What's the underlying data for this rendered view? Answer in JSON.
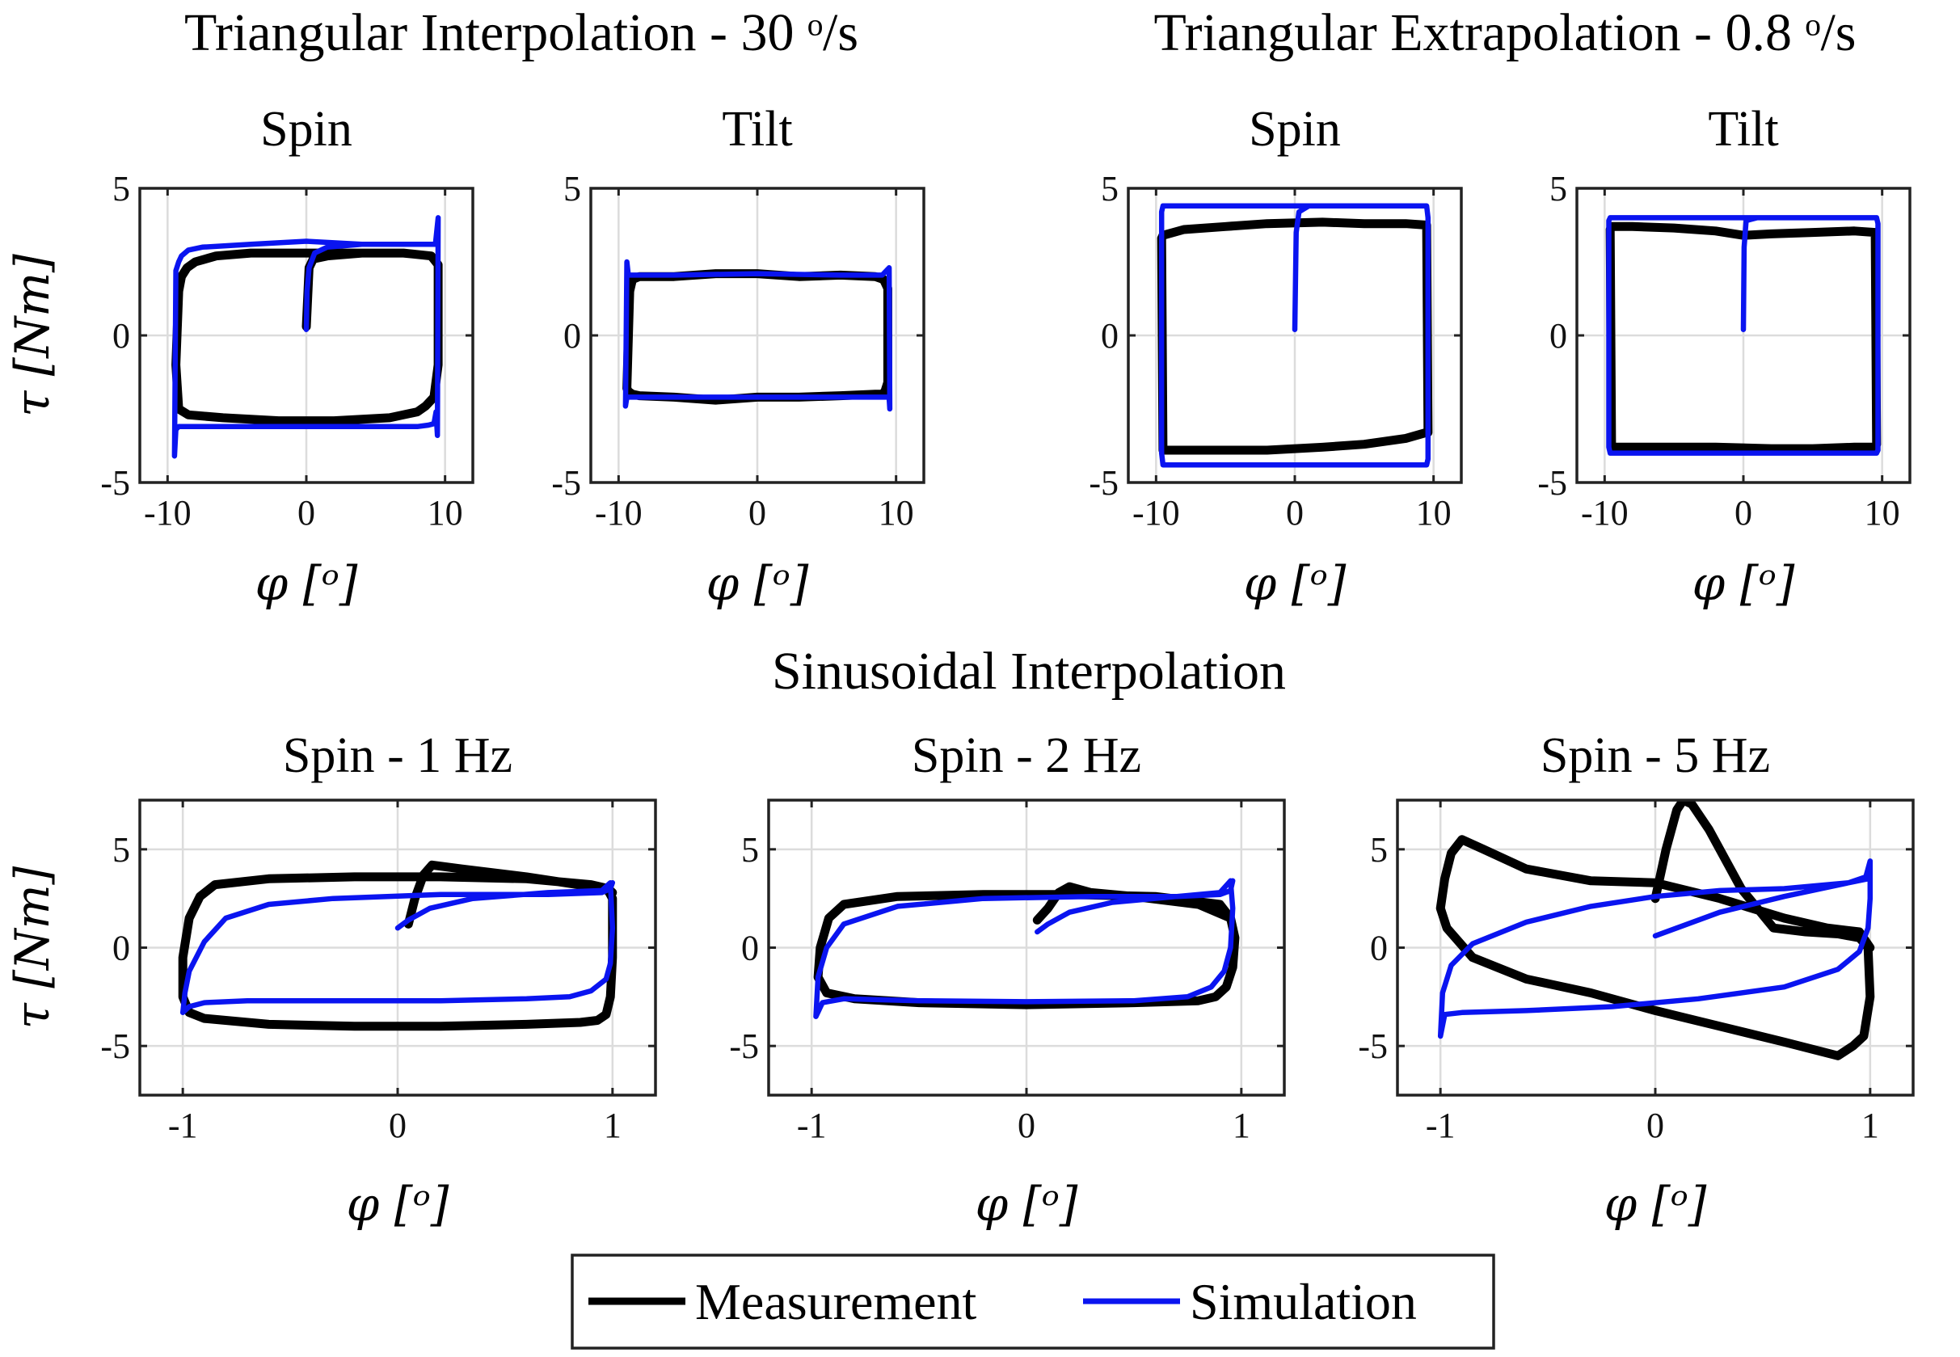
{
  "section_titles": {
    "tri_interp": "Triangular Interpolation - 30 ᵒ/s",
    "tri_extrap": "Triangular Extrapolation - 0.8 ᵒ/s",
    "sin_interp": "Sinusoidal Interpolation"
  },
  "legend": {
    "measurement": "Measurement",
    "simulation": "Simulation"
  },
  "colors": {
    "measurement": "#000000",
    "simulation": "#0a14f0"
  },
  "chart_data": [
    {
      "type": "line",
      "title": "Spin",
      "xlabel": "φ [ᵒ]",
      "ylabel": "τ [Nm]",
      "xlim": [
        -12,
        12
      ],
      "ylim": [
        -5,
        5
      ],
      "xticks": [
        -10,
        0,
        10
      ],
      "yticks": [
        -5,
        0,
        5
      ],
      "xtick_labels": [
        "-10",
        "0",
        "10"
      ],
      "ytick_labels": [
        "-5",
        "0",
        "5"
      ],
      "grid": true,
      "series": [
        {
          "name": "Measurement",
          "x": [
            0.0,
            0.2,
            0.5,
            1.5,
            4,
            7,
            9,
            9.5,
            9.5,
            9.2,
            8.6,
            8,
            6,
            2,
            -2,
            -6,
            -8.5,
            -9.2,
            -9.4,
            -9.2,
            -9.0,
            -8.6,
            -8.0,
            -6.5,
            -4,
            0,
            4,
            7,
            9,
            9.5
          ],
          "y": [
            0.3,
            2.3,
            2.6,
            2.7,
            2.8,
            2.8,
            2.7,
            2.4,
            -1.0,
            -2.1,
            -2.4,
            -2.6,
            -2.8,
            -2.9,
            -2.9,
            -2.8,
            -2.7,
            -2.5,
            -1.0,
            1.5,
            2.0,
            2.3,
            2.5,
            2.7,
            2.8,
            2.8,
            2.8,
            2.8,
            2.7,
            2.4
          ]
        },
        {
          "name": "Simulation",
          "x": [
            0.0,
            0.05,
            0.2,
            0.6,
            1.5,
            4,
            8,
            9.3,
            9.5,
            9.45,
            9.35,
            9.2,
            8.8,
            8,
            4,
            -4,
            -8,
            -9.2,
            -9.4,
            -9.5,
            -9.4,
            -9.2,
            -9.0,
            -8.5,
            -7.5,
            -4,
            0,
            4,
            8,
            9.3,
            9.5
          ],
          "y": [
            0.2,
            1.5,
            2.3,
            2.8,
            3.0,
            3.1,
            3.1,
            3.1,
            4.0,
            -3.4,
            -2.6,
            -3.0,
            -3.05,
            -3.1,
            -3.1,
            -3.1,
            -3.1,
            -3.1,
            -3.2,
            -4.1,
            2.2,
            2.5,
            2.7,
            2.9,
            3.0,
            3.1,
            3.2,
            3.1,
            3.1,
            3.1,
            4.0
          ]
        }
      ]
    },
    {
      "type": "line",
      "title": "Tilt",
      "xlabel": "φ [ᵒ]",
      "ylabel": "",
      "xlim": [
        -12,
        12
      ],
      "ylim": [
        -5,
        5
      ],
      "xticks": [
        -10,
        0,
        10
      ],
      "yticks": [
        -5,
        0,
        5
      ],
      "xtick_labels": [
        "-10",
        "0",
        "10"
      ],
      "ytick_labels": [
        "-5",
        "0",
        "5"
      ],
      "grid": true,
      "series": [
        {
          "name": "Measurement",
          "x": [
            -9.4,
            -9.2,
            -9.0,
            -8.5,
            -6,
            -3,
            0,
            3,
            6,
            8.5,
            9.1,
            9.4,
            9.4,
            9.2,
            9.0,
            8.5,
            6,
            3,
            0,
            -3,
            -6,
            -8.5,
            -9.0,
            -9.3,
            -9.4
          ],
          "y": [
            -1.8,
            1.5,
            1.9,
            2.0,
            2.0,
            2.1,
            2.1,
            2.0,
            2.05,
            2.0,
            1.9,
            1.6,
            -1.6,
            -1.9,
            -2.0,
            -2.0,
            -2.05,
            -2.1,
            -2.1,
            -2.2,
            -2.1,
            -2.05,
            -2.0,
            -1.9,
            -1.8
          ]
        },
        {
          "name": "Simulation",
          "x": [
            -9.5,
            -9.4,
            -9.3,
            -9.0,
            -6,
            0,
            6,
            9.0,
            9.5,
            9.55,
            9.5,
            9.4,
            9.0,
            6,
            0,
            -6,
            -9.0,
            -9.4,
            -9.5
          ],
          "y": [
            -2.4,
            2.5,
            2.05,
            2.05,
            2.05,
            2.1,
            2.05,
            2.05,
            2.3,
            -2.5,
            -2.15,
            -2.1,
            -2.1,
            -2.1,
            -2.1,
            -2.1,
            -2.1,
            -2.1,
            -2.4
          ]
        }
      ]
    },
    {
      "type": "line",
      "title": "Spin",
      "xlabel": "φ [ᵒ]",
      "ylabel": "τ [Nm]",
      "xlim": [
        -12,
        12
      ],
      "ylim": [
        -5,
        5
      ],
      "xticks": [
        -10,
        0,
        10
      ],
      "yticks": [
        -5,
        0,
        5
      ],
      "xtick_labels": [
        "-10",
        "0",
        "10"
      ],
      "ytick_labels": [
        "-5",
        "0",
        "5"
      ],
      "grid": true,
      "series": [
        {
          "name": "Measurement",
          "x": [
            -9.6,
            -9.5,
            -8,
            -5,
            -2,
            2,
            5,
            8,
            9.5,
            9.6,
            9.5,
            8,
            5,
            2,
            -2,
            -5,
            -8,
            -9.5,
            -9.6
          ],
          "y": [
            3.3,
            3.4,
            3.6,
            3.7,
            3.8,
            3.85,
            3.8,
            3.8,
            3.75,
            -3.3,
            -3.3,
            -3.5,
            -3.7,
            -3.8,
            -3.9,
            -3.9,
            -3.9,
            -3.9,
            3.3
          ]
        },
        {
          "name": "Simulation",
          "x": [
            0.0,
            0.1,
            0.3,
            1,
            5,
            9.5,
            9.6,
            9.6,
            9.5,
            5,
            0,
            -5,
            -9.5,
            -9.6,
            -9.6,
            -9.5,
            -5,
            0,
            5,
            9.5
          ],
          "y": [
            0.2,
            3.5,
            4.2,
            4.4,
            4.4,
            4.4,
            4.0,
            -4.2,
            -4.4,
            -4.4,
            -4.4,
            -4.4,
            -4.4,
            -4.0,
            4.2,
            4.4,
            4.4,
            4.4,
            4.4,
            4.4
          ]
        }
      ]
    },
    {
      "type": "line",
      "title": "Tilt",
      "xlabel": "φ [ᵒ]",
      "ylabel": "",
      "xlim": [
        -12,
        12
      ],
      "ylim": [
        -5,
        5
      ],
      "xticks": [
        -10,
        0,
        10
      ],
      "yticks": [
        -5,
        0,
        5
      ],
      "xtick_labels": [
        "-10",
        "0",
        "10"
      ],
      "ytick_labels": [
        "-5",
        "0",
        "5"
      ],
      "grid": true,
      "series": [
        {
          "name": "Measurement",
          "x": [
            -9.6,
            -9.5,
            -8,
            -5,
            -2,
            0,
            2,
            5,
            8,
            9.5,
            9.6,
            9.5,
            8,
            5,
            2,
            -2,
            -5,
            -8,
            -9.5,
            -9.6
          ],
          "y": [
            3.6,
            3.7,
            3.7,
            3.65,
            3.55,
            3.4,
            3.45,
            3.5,
            3.55,
            3.5,
            -3.7,
            -3.8,
            -3.8,
            -3.85,
            -3.85,
            -3.8,
            -3.8,
            -3.8,
            -3.8,
            3.6
          ]
        },
        {
          "name": "Simulation",
          "x": [
            0.0,
            0.05,
            0.2,
            1,
            5,
            9.6,
            9.7,
            9.7,
            9.6,
            5,
            0,
            -5,
            -9.6,
            -9.7,
            -9.7,
            -9.6,
            -5,
            0,
            5,
            9.6
          ],
          "y": [
            0.2,
            3.0,
            3.9,
            4.0,
            4.0,
            4.0,
            3.8,
            -3.9,
            -4.0,
            -4.0,
            -4.0,
            -4.0,
            -4.0,
            -3.8,
            3.9,
            4.0,
            4.0,
            4.0,
            4.0,
            4.0
          ]
        }
      ]
    },
    {
      "type": "line",
      "title": "Spin - 1 Hz",
      "xlabel": "φ [ᵒ]",
      "ylabel": "τ [Nm]",
      "xlim": [
        -1.2,
        1.2
      ],
      "ylim": [
        -7.5,
        7.5
      ],
      "xticks": [
        -1,
        0,
        1
      ],
      "yticks": [
        -5,
        0,
        5
      ],
      "xtick_labels": [
        "-1",
        "0",
        "1"
      ],
      "ytick_labels": [
        "-5",
        "0",
        "5"
      ],
      "grid": true,
      "series": [
        {
          "name": "Measurement",
          "x": [
            0.05,
            0.08,
            0.12,
            0.16,
            0.3,
            0.6,
            0.9,
            0.98,
            1.0,
            1.0,
            0.99,
            0.97,
            0.93,
            0.85,
            0.6,
            0.2,
            -0.2,
            -0.6,
            -0.9,
            -0.97,
            -1.0,
            -1.0,
            -0.97,
            -0.92,
            -0.85,
            -0.6,
            -0.2,
            0.2,
            0.6,
            0.9,
            0.98,
            1.0
          ],
          "y": [
            1.2,
            2.5,
            3.7,
            4.2,
            4.0,
            3.6,
            3.1,
            2.9,
            2.5,
            -0.5,
            -2.5,
            -3.4,
            -3.7,
            -3.8,
            -3.9,
            -4.0,
            -4.0,
            -3.9,
            -3.6,
            -3.3,
            -2.5,
            -0.5,
            1.5,
            2.6,
            3.2,
            3.5,
            3.6,
            3.6,
            3.5,
            3.2,
            3.0,
            2.8
          ]
        },
        {
          "name": "Simulation",
          "x": [
            0.0,
            0.05,
            0.15,
            0.35,
            0.7,
            0.95,
            0.99,
            1.0,
            0.99,
            0.97,
            0.9,
            0.8,
            0.6,
            0.2,
            -0.3,
            -0.7,
            -0.9,
            -0.97,
            -1.0,
            -0.99,
            -0.97,
            -0.9,
            -0.8,
            -0.6,
            -0.3,
            0.2,
            0.7,
            0.95,
            0.99,
            1.0
          ],
          "y": [
            1.0,
            1.4,
            2.0,
            2.5,
            2.8,
            2.9,
            3.3,
            1.0,
            -0.8,
            -1.6,
            -2.2,
            -2.5,
            -2.6,
            -2.7,
            -2.7,
            -2.7,
            -2.8,
            -3.0,
            -3.3,
            -2.3,
            -1.2,
            0.3,
            1.5,
            2.2,
            2.5,
            2.7,
            2.7,
            2.8,
            3.0,
            3.3
          ]
        }
      ]
    },
    {
      "type": "line",
      "title": "Spin - 2 Hz",
      "xlabel": "φ [ᵒ]",
      "ylabel": "",
      "xlim": [
        -1.2,
        1.2
      ],
      "ylim": [
        -7.5,
        7.5
      ],
      "xticks": [
        -1,
        0,
        1
      ],
      "yticks": [
        -5,
        0,
        5
      ],
      "xtick_labels": [
        "-1",
        "0",
        "1"
      ],
      "ytick_labels": [
        "-5",
        "0",
        "5"
      ],
      "grid": true,
      "series": [
        {
          "name": "Measurement",
          "x": [
            0.05,
            0.1,
            0.15,
            0.2,
            0.3,
            0.5,
            0.8,
            0.95,
            0.97,
            0.96,
            0.93,
            0.88,
            0.8,
            0.5,
            0.0,
            -0.5,
            -0.8,
            -0.93,
            -0.97,
            -0.96,
            -0.92,
            -0.85,
            -0.6,
            -0.2,
            0.2,
            0.6,
            0.9,
            0.95
          ],
          "y": [
            1.4,
            2.0,
            2.8,
            3.1,
            2.8,
            2.6,
            2.2,
            1.5,
            0.5,
            -1.0,
            -2.0,
            -2.5,
            -2.7,
            -2.8,
            -2.9,
            -2.8,
            -2.6,
            -2.3,
            -1.5,
            0.0,
            1.5,
            2.2,
            2.6,
            2.7,
            2.7,
            2.6,
            2.2,
            1.5
          ]
        },
        {
          "name": "Simulation",
          "x": [
            0.05,
            0.1,
            0.2,
            0.4,
            0.7,
            0.9,
            0.95,
            0.96,
            0.95,
            0.92,
            0.86,
            0.75,
            0.5,
            0.0,
            -0.5,
            -0.85,
            -0.95,
            -0.98,
            -0.97,
            -0.93,
            -0.85,
            -0.6,
            -0.2,
            0.3,
            0.7,
            0.9,
            0.95,
            0.96
          ],
          "y": [
            0.8,
            1.2,
            1.8,
            2.3,
            2.6,
            2.8,
            3.4,
            2.0,
            0.0,
            -1.2,
            -2.0,
            -2.5,
            -2.7,
            -2.75,
            -2.7,
            -2.6,
            -2.8,
            -3.5,
            -1.5,
            0.0,
            1.2,
            2.1,
            2.5,
            2.6,
            2.6,
            2.7,
            2.9,
            3.4
          ]
        }
      ]
    },
    {
      "type": "line",
      "title": "Spin - 5 Hz",
      "xlabel": "φ [ᵒ]",
      "ylabel": "",
      "xlim": [
        -1.2,
        1.2
      ],
      "ylim": [
        -7.5,
        7.5
      ],
      "xticks": [
        -1,
        0,
        1
      ],
      "yticks": [
        -5,
        0,
        5
      ],
      "xtick_labels": [
        "-1",
        "0",
        "1"
      ],
      "ytick_labels": [
        "-5",
        "0",
        "5"
      ],
      "grid": true,
      "series": [
        {
          "name": "Measurement",
          "x": [
            0.0,
            0.05,
            0.1,
            0.13,
            0.17,
            0.25,
            0.4,
            0.55,
            0.7,
            0.85,
            0.95,
            0.99,
            1.0,
            0.97,
            0.92,
            0.85,
            0.6,
            0.3,
            0.0,
            -0.3,
            -0.6,
            -0.85,
            -0.97,
            -1.0,
            -0.98,
            -0.95,
            -0.9,
            -0.8,
            -0.6,
            -0.3,
            0.0,
            0.3,
            0.6,
            0.8,
            0.95,
            1.0
          ],
          "y": [
            2.5,
            5.0,
            7.0,
            7.5,
            7.3,
            6.0,
            3.0,
            1.0,
            0.8,
            0.7,
            0.5,
            0.0,
            -2.5,
            -4.5,
            -5.0,
            -5.5,
            -4.8,
            -4.0,
            -3.2,
            -2.3,
            -1.6,
            -0.5,
            1.0,
            2.0,
            3.5,
            4.8,
            5.5,
            5.0,
            4.0,
            3.4,
            3.3,
            2.5,
            1.5,
            1.0,
            0.8,
            0.0
          ]
        },
        {
          "name": "Simulation",
          "x": [
            0.0,
            0.1,
            0.3,
            0.6,
            0.9,
            0.98,
            1.0,
            1.0,
            0.99,
            0.95,
            0.85,
            0.6,
            0.2,
            -0.2,
            -0.6,
            -0.9,
            -0.98,
            -1.0,
            -0.99,
            -0.95,
            -0.85,
            -0.6,
            -0.3,
            0.0,
            0.3,
            0.6,
            0.9,
            0.99,
            1.0
          ],
          "y": [
            0.6,
            1.0,
            1.8,
            2.6,
            3.3,
            3.6,
            4.4,
            2.5,
            1.0,
            -0.2,
            -1.1,
            -2.0,
            -2.6,
            -3.0,
            -3.2,
            -3.3,
            -3.4,
            -4.5,
            -2.3,
            -0.9,
            0.2,
            1.3,
            2.1,
            2.6,
            2.9,
            3.0,
            3.3,
            3.5,
            4.4
          ]
        }
      ]
    }
  ]
}
